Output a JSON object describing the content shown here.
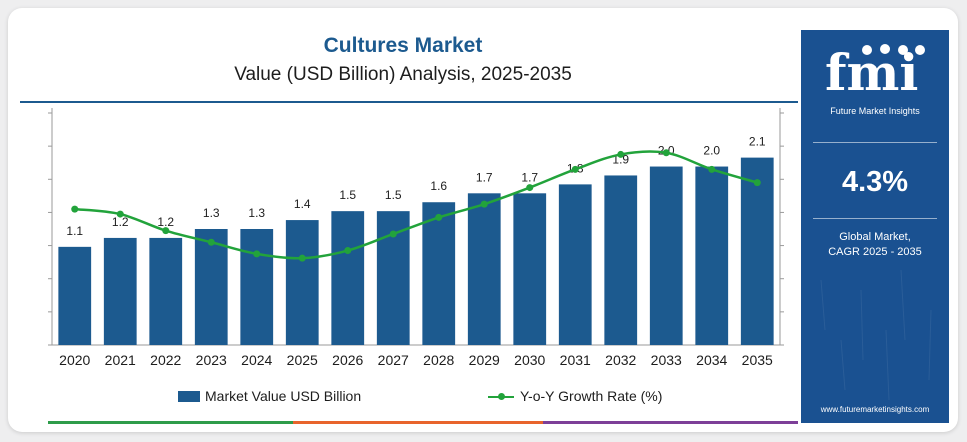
{
  "colors": {
    "bar": "#1c5a8f",
    "line": "#22a33b",
    "panel": "#1a5191",
    "strip": [
      "#2e9c4a",
      "#e8642c",
      "#7d3f98"
    ]
  },
  "panel": {
    "logo_text": "fmi",
    "logo_subtitle": "Future Market Insights",
    "cagr_value": "4.3%",
    "cagr_label_line1": "Global Market,",
    "cagr_label_line2": "CAGR 2025 - 2035",
    "website": "www.futuremarketinsights.com"
  },
  "legend": {
    "bar_label": "Market Value USD Billion",
    "line_label": "Y-o-Y Growth Rate (%)"
  },
  "chart_data": {
    "type": "bar",
    "title": "Cultures Market",
    "subtitle": "Value (USD Billion) Analysis, 2025-2035",
    "categories": [
      "2020",
      "2021",
      "2022",
      "2023",
      "2024",
      "2025",
      "2026",
      "2027",
      "2028",
      "2029",
      "2030",
      "2031",
      "2032",
      "2033",
      "2034",
      "2035"
    ],
    "series": [
      {
        "name": "Market Value USD Billion",
        "type": "bar",
        "values": [
          1.1,
          1.2,
          1.2,
          1.3,
          1.3,
          1.4,
          1.5,
          1.5,
          1.6,
          1.7,
          1.7,
          1.8,
          1.9,
          2.0,
          2.0,
          2.1
        ],
        "labels": [
          "1.1",
          "1.2",
          "1.2",
          "1.3",
          "1.3",
          "1.4",
          "1.5",
          "1.5",
          "1.6",
          "1.7",
          "1.7",
          "1.8",
          "1.9",
          "2.0",
          "2.0",
          "2.1"
        ]
      },
      {
        "name": "Y-o-Y Growth Rate (%)",
        "type": "line",
        "values": [
          4.1,
          3.95,
          3.45,
          3.1,
          2.75,
          2.62,
          2.85,
          3.35,
          3.85,
          4.25,
          4.75,
          5.3,
          5.75,
          5.8,
          5.3,
          4.9
        ]
      }
    ],
    "ylim": [
      0,
      2.6
    ],
    "y2lim": [
      0,
      7
    ],
    "y_ticks_count": 7,
    "grid": false,
    "legend_position": "bottom"
  }
}
